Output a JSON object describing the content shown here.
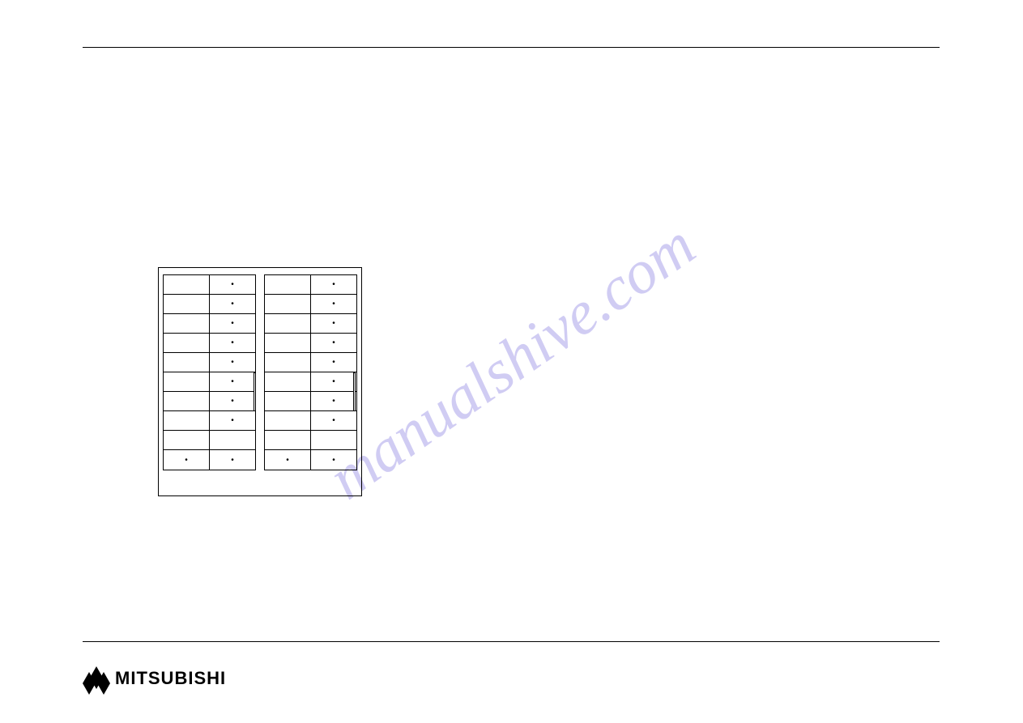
{
  "watermark": "manualshive.com",
  "logo_text": "MITSUBISHI",
  "table": {
    "left_rows": [
      [
        "",
        "•"
      ],
      [
        "",
        "•"
      ],
      [
        "",
        "•"
      ],
      [
        "",
        "•"
      ],
      [
        "",
        "•"
      ],
      [
        "",
        "•"
      ],
      [
        "",
        "•"
      ],
      [
        "",
        "•"
      ],
      [
        "",
        ""
      ],
      [
        "•",
        "•"
      ]
    ],
    "right_rows": [
      [
        "",
        "•"
      ],
      [
        "",
        "•"
      ],
      [
        "",
        "•"
      ],
      [
        "",
        "•"
      ],
      [
        "",
        "•"
      ],
      [
        "",
        "•"
      ],
      [
        "",
        "•"
      ],
      [
        "",
        "•"
      ],
      [
        "",
        ""
      ],
      [
        "•",
        "•"
      ]
    ]
  },
  "colors": {
    "rule": "#000000",
    "background": "#ffffff",
    "watermark": "rgba(120,110,220,0.35)"
  }
}
